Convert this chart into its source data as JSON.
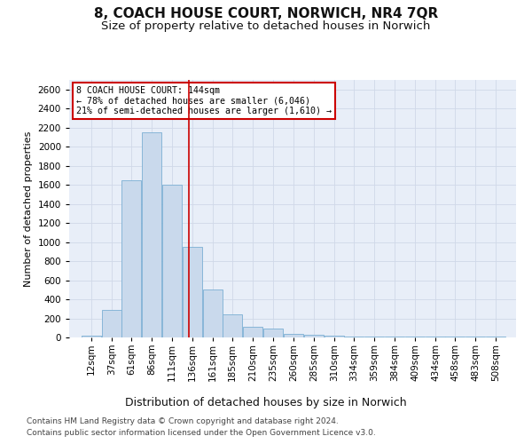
{
  "title": "8, COACH HOUSE COURT, NORWICH, NR4 7QR",
  "subtitle": "Size of property relative to detached houses in Norwich",
  "xlabel": "Distribution of detached houses by size in Norwich",
  "ylabel": "Number of detached properties",
  "bar_color": "#c9d9ec",
  "bar_edge_color": "#7bafd4",
  "annotation_line1": "8 COACH HOUSE COURT: 144sqm",
  "annotation_line2": "← 78% of detached houses are smaller (6,046)",
  "annotation_line3": "21% of semi-detached houses are larger (1,610) →",
  "annotation_box_color": "#ffffff",
  "annotation_box_edgecolor": "#cc0000",
  "redline_x": 144,
  "redline_color": "#cc0000",
  "footer1": "Contains HM Land Registry data © Crown copyright and database right 2024.",
  "footer2": "Contains public sector information licensed under the Open Government Licence v3.0.",
  "categories": [
    "12sqm",
    "37sqm",
    "61sqm",
    "86sqm",
    "111sqm",
    "136sqm",
    "161sqm",
    "185sqm",
    "210sqm",
    "235sqm",
    "260sqm",
    "285sqm",
    "310sqm",
    "334sqm",
    "359sqm",
    "384sqm",
    "409sqm",
    "434sqm",
    "458sqm",
    "483sqm",
    "508sqm"
  ],
  "bin_starts": [
    12,
    37,
    61,
    86,
    111,
    136,
    161,
    185,
    210,
    235,
    260,
    285,
    310,
    334,
    359,
    384,
    409,
    434,
    458,
    483,
    508
  ],
  "bin_width": 25,
  "values": [
    20,
    290,
    1650,
    2150,
    1600,
    950,
    500,
    245,
    110,
    90,
    35,
    30,
    20,
    10,
    10,
    5,
    10,
    5,
    5,
    5,
    5
  ],
  "ylim": [
    0,
    2700
  ],
  "yticks": [
    0,
    200,
    400,
    600,
    800,
    1000,
    1200,
    1400,
    1600,
    1800,
    2000,
    2200,
    2400,
    2600
  ],
  "grid_color": "#d0d8e8",
  "bg_color": "#e8eef8",
  "fig_bg_color": "#ffffff",
  "title_fontsize": 11,
  "subtitle_fontsize": 9.5,
  "xlabel_fontsize": 9,
  "ylabel_fontsize": 8,
  "tick_fontsize": 7.5,
  "footer_fontsize": 6.5
}
